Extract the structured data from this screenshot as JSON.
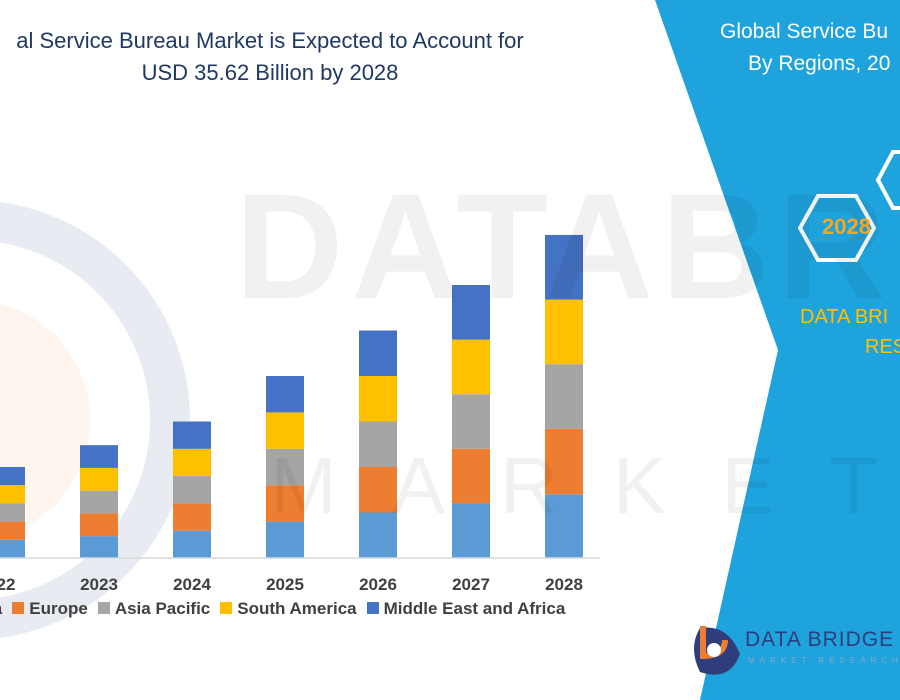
{
  "header": {
    "title_line1": "al Service Bureau Market is Expected to Account for",
    "title_line2": "USD 35.62 Billion by 2028"
  },
  "watermark": {
    "text": "DATABRIDGE",
    "subtext": "MARKET RESEARCH"
  },
  "side_panel": {
    "title_line1": "Global Service  Bu",
    "title_line2": "By Regions, 20",
    "hex_label": "2028",
    "brand_line1": "DATA BRI",
    "brand_line2": "RES",
    "logo_text": "DATA BRIDGE",
    "logo_sub": "MARKET RESEARCH",
    "color": "#1ea3dc"
  },
  "chart_data": {
    "type": "bar",
    "stacked": true,
    "title": "al Service Bureau Market is Expected to Account for USD 35.62 Billion by 2028",
    "categories": [
      "22",
      "2023",
      "2024",
      "2025",
      "2026",
      "2027",
      "2028"
    ],
    "series": [
      {
        "name": "rica",
        "color": "#5b9bd5",
        "values": [
          2.0,
          2.4,
          3.0,
          4.0,
          5.0,
          6.0,
          7.0
        ]
      },
      {
        "name": "Europe",
        "color": "#ed7d31",
        "values": [
          2.0,
          2.5,
          3.0,
          4.0,
          5.0,
          6.0,
          7.2
        ]
      },
      {
        "name": "Asia Pacific",
        "color": "#a5a5a5",
        "values": [
          2.0,
          2.5,
          3.0,
          4.0,
          5.0,
          6.0,
          7.1
        ]
      },
      {
        "name": "South America",
        "color": "#ffc000",
        "values": [
          2.0,
          2.5,
          3.0,
          4.0,
          5.0,
          6.0,
          7.1
        ]
      },
      {
        "name": "Middle East and Africa",
        "color": "#4472c4",
        "values": [
          2.0,
          2.5,
          3.0,
          4.0,
          5.0,
          6.0,
          7.1
        ]
      }
    ],
    "ylim": [
      0,
      40
    ],
    "grid": false,
    "legend_position": "bottom"
  }
}
